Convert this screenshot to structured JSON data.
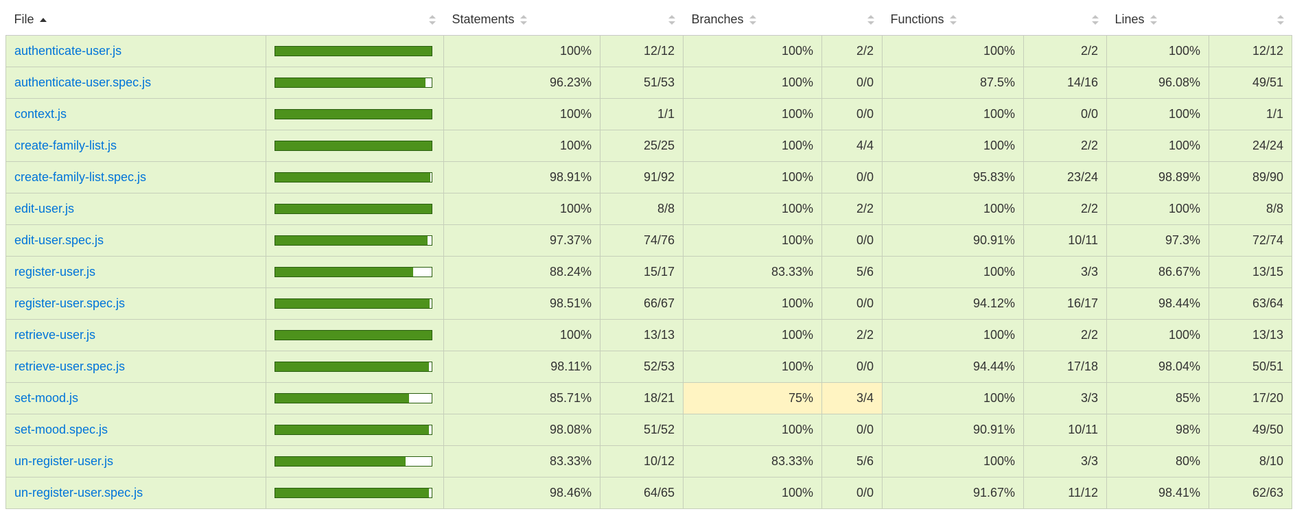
{
  "header": {
    "file": "File",
    "statements": "Statements",
    "branches": "Branches",
    "functions": "Functions",
    "lines": "Lines"
  },
  "colors": {
    "high_bg": "#e6f5d0",
    "medium_bg": "#fff4c2",
    "bar_fill": "#4d921c",
    "link": "#0074d9"
  },
  "rows": [
    {
      "file": "authenticate-user.js",
      "coverage": 1.0,
      "statements": "100%",
      "statements_abs": "12/12",
      "branches": "100%",
      "branches_abs": "2/2",
      "functions": "100%",
      "functions_abs": "2/2",
      "lines": "100%",
      "lines_abs": "12/12",
      "branches_level": "high"
    },
    {
      "file": "authenticate-user.spec.js",
      "coverage": 0.9623,
      "statements": "96.23%",
      "statements_abs": "51/53",
      "branches": "100%",
      "branches_abs": "0/0",
      "functions": "87.5%",
      "functions_abs": "14/16",
      "lines": "96.08%",
      "lines_abs": "49/51",
      "branches_level": "high"
    },
    {
      "file": "context.js",
      "coverage": 1.0,
      "statements": "100%",
      "statements_abs": "1/1",
      "branches": "100%",
      "branches_abs": "0/0",
      "functions": "100%",
      "functions_abs": "0/0",
      "lines": "100%",
      "lines_abs": "1/1",
      "branches_level": "high"
    },
    {
      "file": "create-family-list.js",
      "coverage": 1.0,
      "statements": "100%",
      "statements_abs": "25/25",
      "branches": "100%",
      "branches_abs": "4/4",
      "functions": "100%",
      "functions_abs": "2/2",
      "lines": "100%",
      "lines_abs": "24/24",
      "branches_level": "high"
    },
    {
      "file": "create-family-list.spec.js",
      "coverage": 0.9891,
      "statements": "98.91%",
      "statements_abs": "91/92",
      "branches": "100%",
      "branches_abs": "0/0",
      "functions": "95.83%",
      "functions_abs": "23/24",
      "lines": "98.89%",
      "lines_abs": "89/90",
      "branches_level": "high"
    },
    {
      "file": "edit-user.js",
      "coverage": 1.0,
      "statements": "100%",
      "statements_abs": "8/8",
      "branches": "100%",
      "branches_abs": "2/2",
      "functions": "100%",
      "functions_abs": "2/2",
      "lines": "100%",
      "lines_abs": "8/8",
      "branches_level": "high"
    },
    {
      "file": "edit-user.spec.js",
      "coverage": 0.9737,
      "statements": "97.37%",
      "statements_abs": "74/76",
      "branches": "100%",
      "branches_abs": "0/0",
      "functions": "90.91%",
      "functions_abs": "10/11",
      "lines": "97.3%",
      "lines_abs": "72/74",
      "branches_level": "high"
    },
    {
      "file": "register-user.js",
      "coverage": 0.8824,
      "statements": "88.24%",
      "statements_abs": "15/17",
      "branches": "83.33%",
      "branches_abs": "5/6",
      "functions": "100%",
      "functions_abs": "3/3",
      "lines": "86.67%",
      "lines_abs": "13/15",
      "branches_level": "high"
    },
    {
      "file": "register-user.spec.js",
      "coverage": 0.9851,
      "statements": "98.51%",
      "statements_abs": "66/67",
      "branches": "100%",
      "branches_abs": "0/0",
      "functions": "94.12%",
      "functions_abs": "16/17",
      "lines": "98.44%",
      "lines_abs": "63/64",
      "branches_level": "high"
    },
    {
      "file": "retrieve-user.js",
      "coverage": 1.0,
      "statements": "100%",
      "statements_abs": "13/13",
      "branches": "100%",
      "branches_abs": "2/2",
      "functions": "100%",
      "functions_abs": "2/2",
      "lines": "100%",
      "lines_abs": "13/13",
      "branches_level": "high"
    },
    {
      "file": "retrieve-user.spec.js",
      "coverage": 0.9811,
      "statements": "98.11%",
      "statements_abs": "52/53",
      "branches": "100%",
      "branches_abs": "0/0",
      "functions": "94.44%",
      "functions_abs": "17/18",
      "lines": "98.04%",
      "lines_abs": "50/51",
      "branches_level": "high"
    },
    {
      "file": "set-mood.js",
      "coverage": 0.8571,
      "statements": "85.71%",
      "statements_abs": "18/21",
      "branches": "75%",
      "branches_abs": "3/4",
      "functions": "100%",
      "functions_abs": "3/3",
      "lines": "85%",
      "lines_abs": "17/20",
      "branches_level": "medium"
    },
    {
      "file": "set-mood.spec.js",
      "coverage": 0.9808,
      "statements": "98.08%",
      "statements_abs": "51/52",
      "branches": "100%",
      "branches_abs": "0/0",
      "functions": "90.91%",
      "functions_abs": "10/11",
      "lines": "98%",
      "lines_abs": "49/50",
      "branches_level": "high"
    },
    {
      "file": "un-register-user.js",
      "coverage": 0.8333,
      "statements": "83.33%",
      "statements_abs": "10/12",
      "branches": "83.33%",
      "branches_abs": "5/6",
      "functions": "100%",
      "functions_abs": "3/3",
      "lines": "80%",
      "lines_abs": "8/10",
      "branches_level": "high"
    },
    {
      "file": "un-register-user.spec.js",
      "coverage": 0.9846,
      "statements": "98.46%",
      "statements_abs": "64/65",
      "branches": "100%",
      "branches_abs": "0/0",
      "functions": "91.67%",
      "functions_abs": "11/12",
      "lines": "98.41%",
      "lines_abs": "62/63",
      "branches_level": "high"
    }
  ]
}
